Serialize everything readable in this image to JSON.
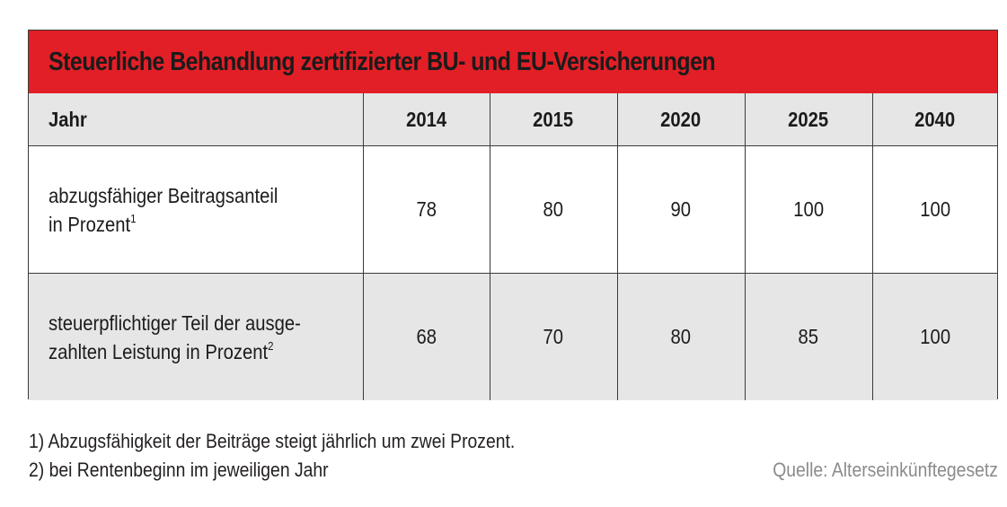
{
  "title": "Steuerliche Behandlung zertifizierter BU- und EU-Versicherungen",
  "colors": {
    "title_bar": "#e21f26",
    "header_bg": "#e6e6e7",
    "alt_row_bg": "#e6e6e7",
    "source_text": "#8b8b8b"
  },
  "table": {
    "header": {
      "label": "Jahr",
      "years": [
        "2014",
        "2015",
        "2020",
        "2025",
        "2040"
      ]
    },
    "rows": [
      {
        "label_line1": "abzugsfähiger Beitragsanteil",
        "label_line2": "in Prozent",
        "footnote_ref": "1",
        "values": [
          "78",
          "80",
          "90",
          "100",
          "100"
        ]
      },
      {
        "label_line1": "steuerpflichtiger Teil der ausge-",
        "label_line2": "zahlten Leistung in Prozent",
        "footnote_ref": "2",
        "values": [
          "68",
          "70",
          "80",
          "85",
          "100"
        ]
      }
    ]
  },
  "footnotes": [
    "1) Abzugsfähigkeit der Beiträge steigt jährlich um zwei Prozent.",
    "2) bei Rentenbeginn im jeweiligen Jahr"
  ],
  "source": "Quelle: Alterseinkünftegesetz"
}
